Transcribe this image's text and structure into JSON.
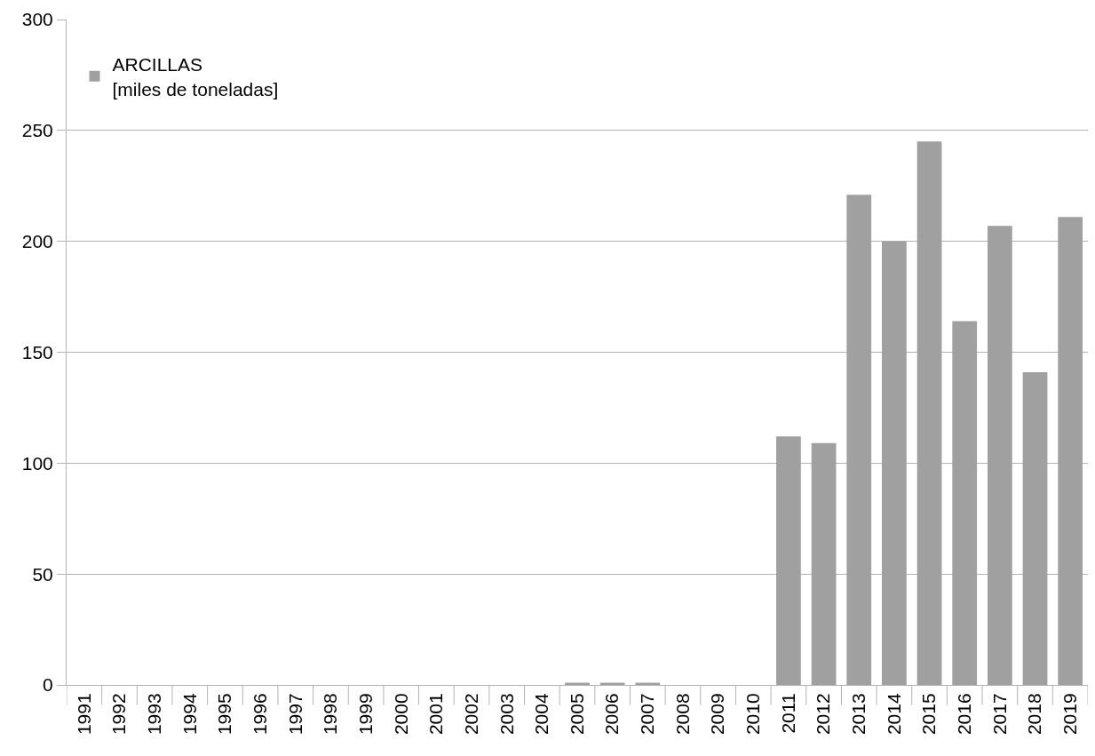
{
  "chart_data": {
    "type": "bar",
    "categories": [
      "1991",
      "1992",
      "1993",
      "1994",
      "1995",
      "1996",
      "1997",
      "1998",
      "1999",
      "2000",
      "2001",
      "2002",
      "2003",
      "2004",
      "2005",
      "2006",
      "2007",
      "2008",
      "2009",
      "2010",
      "2011",
      "2012",
      "2013",
      "2014",
      "2015",
      "2016",
      "2017",
      "2018",
      "2019"
    ],
    "series": [
      {
        "name": "ARCILLAS\n[miles de toneladas]",
        "color": "#a0a0a0",
        "values": [
          0,
          0,
          0,
          0,
          0,
          0,
          0,
          0,
          0,
          0,
          0,
          0,
          0,
          0,
          1,
          1,
          1,
          0,
          0,
          0,
          112,
          109,
          221,
          200,
          245,
          164,
          207,
          141,
          211
        ]
      }
    ],
    "ylim": [
      0,
      300
    ],
    "yticks": [
      0,
      50,
      100,
      150,
      200,
      250,
      300
    ],
    "grid": "y",
    "legend": "top left"
  }
}
